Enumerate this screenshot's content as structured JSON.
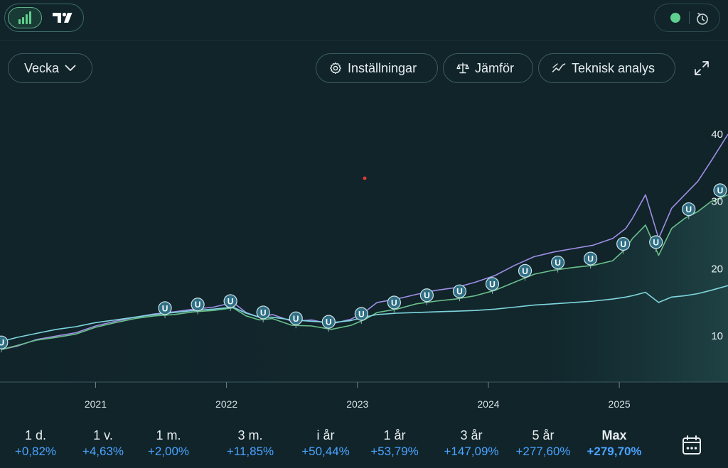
{
  "toolbar": {
    "period": "Vecka",
    "settings": "Inställningar",
    "compare": "Jämför",
    "technical": "Teknisk analys"
  },
  "icons": {
    "chart_mode": "bar-chart-icon",
    "tradingview": "tradingview-logo-icon",
    "status": "status-dot-icon",
    "clock": "clock-refresh-icon",
    "dropdown": "chevron-down-icon",
    "settings": "gear-icon",
    "compare": "scale-icon",
    "technical": "trend-line-icon",
    "expand": "expand-icon",
    "calendar": "calendar-icon"
  },
  "colors": {
    "background": "#10242a",
    "purple_series": "#a08ee6",
    "green_series": "#6abf8a",
    "cyan_series": "#7fd6de",
    "positive": "#4aa3ff",
    "status": "#5fd08e"
  },
  "chart_data": {
    "type": "line",
    "x_ticks": [
      "2021",
      "2022",
      "2023",
      "2024",
      "2025"
    ],
    "y_ticks": [
      10,
      20,
      30,
      40
    ],
    "xlim": [
      2020.27,
      2025.83
    ],
    "ylim": [
      0,
      42
    ],
    "markers_label": "U",
    "marker_x": [
      2020.28,
      2021.53,
      2021.78,
      2022.03,
      2022.28,
      2022.53,
      2022.78,
      2023.03,
      2023.28,
      2023.53,
      2023.78,
      2024.03,
      2024.28,
      2024.53,
      2024.78,
      2025.03,
      2025.28,
      2025.53,
      2025.78
    ],
    "series": [
      {
        "x": [
          2020.28,
          2020.4,
          2020.55,
          2020.7,
          2020.85,
          2021.0,
          2021.15,
          2021.3,
          2021.45,
          2021.6,
          2021.75,
          2021.9,
          2022.05,
          2022.15,
          2022.25,
          2022.35,
          2022.5,
          2022.65,
          2022.8,
          2022.95,
          2023.05,
          2023.15,
          2023.3,
          2023.45,
          2023.6,
          2023.75,
          2023.9,
          2024.05,
          2024.2,
          2024.35,
          2024.5,
          2024.65,
          2024.8,
          2024.95,
          2025.05,
          2025.1,
          2025.2,
          2025.3,
          2025.4,
          2025.5,
          2025.6,
          2025.7,
          2025.83
        ],
        "values": [
          8,
          8.5,
          9.5,
          10,
          10.5,
          11.5,
          12.2,
          12.8,
          13.3,
          13.6,
          14,
          14.3,
          15,
          13.5,
          12.8,
          13.2,
          12.2,
          12.4,
          11.8,
          12.5,
          13.5,
          15,
          15.5,
          16.2,
          16.8,
          17.2,
          18,
          19,
          20.5,
          21.8,
          22.5,
          23,
          23.5,
          24.5,
          26,
          27.5,
          31,
          24.5,
          29,
          31,
          33,
          36,
          40
        ]
      },
      {
        "x": [
          2020.28,
          2020.4,
          2020.55,
          2020.7,
          2020.85,
          2021.0,
          2021.15,
          2021.3,
          2021.45,
          2021.6,
          2021.75,
          2021.9,
          2022.05,
          2022.15,
          2022.25,
          2022.35,
          2022.5,
          2022.65,
          2022.8,
          2022.95,
          2023.05,
          2023.15,
          2023.3,
          2023.45,
          2023.6,
          2023.75,
          2023.9,
          2024.05,
          2024.2,
          2024.35,
          2024.5,
          2024.65,
          2024.8,
          2024.95,
          2025.05,
          2025.1,
          2025.2,
          2025.3,
          2025.4,
          2025.5,
          2025.6,
          2025.7,
          2025.83
        ],
        "values": [
          8,
          8.6,
          9.4,
          9.8,
          10.3,
          11.3,
          12,
          12.6,
          13,
          13.2,
          13.6,
          13.8,
          14.2,
          13,
          12.4,
          12.6,
          11.6,
          11.5,
          11,
          11.6,
          12.4,
          13.5,
          14,
          14.8,
          15.2,
          15.5,
          16,
          16.8,
          18,
          19.2,
          19.8,
          20.2,
          20.5,
          21.2,
          23,
          24.5,
          26.5,
          22,
          26,
          27.5,
          28.5,
          30,
          31
        ]
      },
      {
        "x": [
          2020.28,
          2020.4,
          2020.55,
          2020.7,
          2020.85,
          2021.0,
          2021.15,
          2021.3,
          2021.45,
          2021.6,
          2021.75,
          2021.9,
          2022.05,
          2022.15,
          2022.25,
          2022.35,
          2022.5,
          2022.65,
          2022.8,
          2022.95,
          2023.05,
          2023.15,
          2023.3,
          2023.45,
          2023.6,
          2023.75,
          2023.9,
          2024.05,
          2024.2,
          2024.35,
          2024.5,
          2024.65,
          2024.8,
          2024.95,
          2025.05,
          2025.1,
          2025.2,
          2025.3,
          2025.4,
          2025.5,
          2025.6,
          2025.7,
          2025.83
        ],
        "values": [
          9.2,
          9.8,
          10.4,
          11,
          11.4,
          12,
          12.4,
          12.8,
          13.2,
          13.5,
          13.8,
          14,
          14.3,
          13.4,
          12.8,
          12.8,
          12.4,
          12.2,
          12,
          12.3,
          12.8,
          13.2,
          13.4,
          13.5,
          13.6,
          13.7,
          13.8,
          14,
          14.3,
          14.6,
          14.8,
          15,
          15.2,
          15.5,
          15.8,
          16,
          16.5,
          15,
          15.8,
          16,
          16.3,
          16.8,
          17.5
        ]
      }
    ]
  },
  "performance": [
    {
      "label": "1 d.",
      "value": "+0,82%"
    },
    {
      "label": "1 v.",
      "value": "+4,63%"
    },
    {
      "label": "1 m.",
      "value": "+2,00%"
    },
    {
      "label": "3 m.",
      "value": "+11,85%"
    },
    {
      "label": "i år",
      "value": "+50,44%"
    },
    {
      "label": "1 år",
      "value": "+53,79%"
    },
    {
      "label": "3 år",
      "value": "+147,09%"
    },
    {
      "label": "5 år",
      "value": "+277,60%"
    },
    {
      "label": "Max",
      "value": "+279,70%"
    }
  ]
}
